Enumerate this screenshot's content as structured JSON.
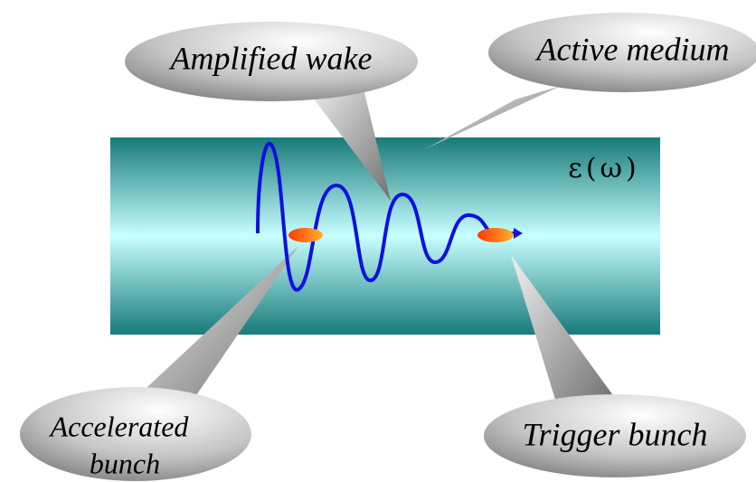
{
  "labels": {
    "amplified_wake": "Amplified wake",
    "active_medium": "Active medium",
    "permittivity": "ε(ω)",
    "accelerated_bunch": [
      "Accelerated",
      "bunch"
    ],
    "trigger_bunch": "Trigger bunch"
  }
}
